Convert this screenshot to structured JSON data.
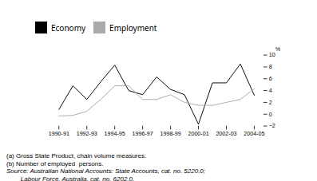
{
  "chart_data": {
    "type": "line",
    "categories": [
      "1990-91",
      null,
      "1992-93",
      null,
      "1994-95",
      null,
      "1996-97",
      null,
      "1998-99",
      null,
      "2000-01",
      null,
      "2002-03",
      null,
      "2004-05"
    ],
    "series": [
      {
        "name": "Economy",
        "color": "#000000",
        "values": [
          0.8,
          4.8,
          2.5,
          5.5,
          8.3,
          4.0,
          3.3,
          6.3,
          4.2,
          3.3,
          -1.7,
          5.3,
          5.3,
          8.5,
          3.2
        ]
      },
      {
        "name": "Employment",
        "color": "#aaaaaa",
        "values": [
          -0.3,
          -0.2,
          0.5,
          2.5,
          4.8,
          4.8,
          2.5,
          2.5,
          3.3,
          2.0,
          1.5,
          1.5,
          2.0,
          2.5,
          4.3
        ]
      }
    ],
    "ylabel": "%",
    "ylim": [
      -2,
      10
    ],
    "yticks": [
      -2,
      0,
      2,
      4,
      6,
      8,
      10
    ],
    "legend": "upper left",
    "notes": [
      "(a) Gross State Product, chain volume measures.",
      "(b) Number of employed  persons."
    ],
    "sources": [
      "Source: Australian National Accounts: State Accounts, cat. no. 5220.0;",
      "        Labour Force, Australia, cat. no. 6202.0."
    ]
  }
}
